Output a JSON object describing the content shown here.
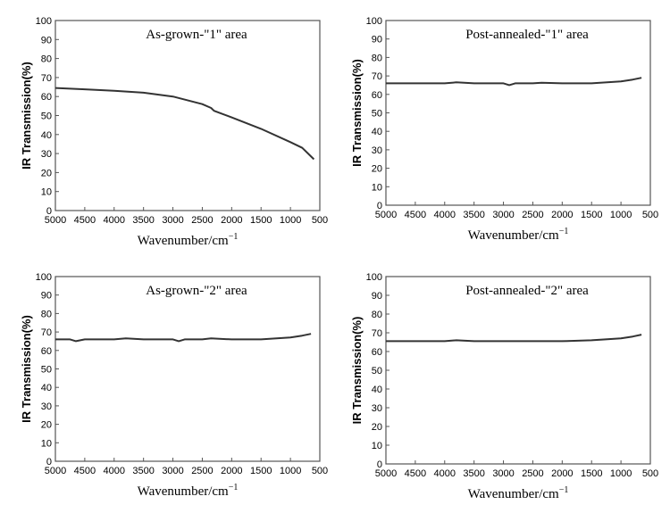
{
  "colors": {
    "line": "#333333",
    "frame": "#555555"
  },
  "chart_data": [
    {
      "type": "line",
      "title": "As-grown-\"1\" area",
      "xlabel": "Wavenumber/cm",
      "xlabel_sup": "−1",
      "ylabel": "IR Transmission(%)",
      "xlim": [
        5000,
        500
      ],
      "ylim": [
        0,
        100
      ],
      "x_ticks": [
        "5000",
        "4500",
        "4000",
        "3500",
        "3000",
        "2500",
        "2000",
        "1500",
        "1000",
        "500"
      ],
      "y_ticks": [
        "0",
        "10",
        "20",
        "30",
        "40",
        "50",
        "60",
        "70",
        "80",
        "90",
        "100"
      ],
      "grid": false,
      "series": [
        {
          "x": [
            5000,
            4500,
            4000,
            3500,
            3000,
            2500,
            2350,
            2300,
            2000,
            1500,
            1000,
            800,
            600
          ],
          "y": [
            64.5,
            63.8,
            63,
            62,
            60,
            56,
            54,
            52.5,
            49,
            43,
            36,
            33,
            27
          ]
        }
      ]
    },
    {
      "type": "line",
      "title": "Post-annealed-\"1\" area",
      "xlabel": "Wavenumber/cm",
      "xlabel_sup": "−1",
      "ylabel": "IR Transmission(%)",
      "xlim": [
        5000,
        500
      ],
      "ylim": [
        0,
        100
      ],
      "x_ticks": [
        "5000",
        "4500",
        "4000",
        "3500",
        "3000",
        "2500",
        "2000",
        "1500",
        "1000",
        "500"
      ],
      "y_ticks": [
        "0",
        "10",
        "20",
        "30",
        "40",
        "50",
        "60",
        "70",
        "80",
        "90",
        "100"
      ],
      "grid": false,
      "series": [
        {
          "x": [
            5000,
            4500,
            4000,
            3800,
            3500,
            3000,
            2900,
            2800,
            2500,
            2350,
            2000,
            1500,
            1000,
            800,
            650
          ],
          "y": [
            66,
            66,
            66,
            66.5,
            66,
            66,
            65,
            66,
            66,
            66.3,
            66,
            66,
            67,
            68,
            69
          ]
        }
      ]
    },
    {
      "type": "line",
      "title": "As-grown-\"2\" area",
      "xlabel": "Wavenumber/cm",
      "xlabel_sup": "−1",
      "ylabel": "IR Transmission(%)",
      "xlim": [
        5000,
        500
      ],
      "ylim": [
        0,
        100
      ],
      "x_ticks": [
        "5000",
        "4500",
        "4000",
        "3500",
        "3000",
        "2500",
        "2000",
        "1500",
        "1000",
        "500"
      ],
      "y_ticks": [
        "0",
        "10",
        "20",
        "30",
        "40",
        "50",
        "60",
        "70",
        "80",
        "90",
        "100"
      ],
      "grid": false,
      "series": [
        {
          "x": [
            5000,
            4750,
            4650,
            4500,
            4000,
            3800,
            3500,
            3000,
            2900,
            2800,
            2500,
            2350,
            2000,
            1500,
            1000,
            800,
            650
          ],
          "y": [
            66,
            66,
            65,
            66,
            66,
            66.5,
            66,
            66,
            65,
            66,
            66,
            66.5,
            66,
            66,
            67,
            68,
            69
          ]
        }
      ]
    },
    {
      "type": "line",
      "title": "Post-annealed-\"2\" area",
      "xlabel": "Wavenumber/cm",
      "xlabel_sup": "−1",
      "ylabel": "IR Transmission(%)",
      "xlim": [
        5000,
        500
      ],
      "ylim": [
        0,
        100
      ],
      "x_ticks": [
        "5000",
        "4500",
        "4000",
        "3500",
        "3000",
        "2500",
        "2000",
        "1500",
        "1000",
        "500"
      ],
      "y_ticks": [
        "0",
        "10",
        "20",
        "30",
        "40",
        "50",
        "60",
        "70",
        "80",
        "90",
        "100"
      ],
      "grid": false,
      "series": [
        {
          "x": [
            5000,
            4500,
            4000,
            3800,
            3500,
            3000,
            2500,
            2000,
            1500,
            1000,
            800,
            650
          ],
          "y": [
            65.5,
            65.5,
            65.5,
            66,
            65.5,
            65.5,
            65.5,
            65.5,
            66,
            67,
            68,
            69
          ]
        }
      ]
    }
  ]
}
